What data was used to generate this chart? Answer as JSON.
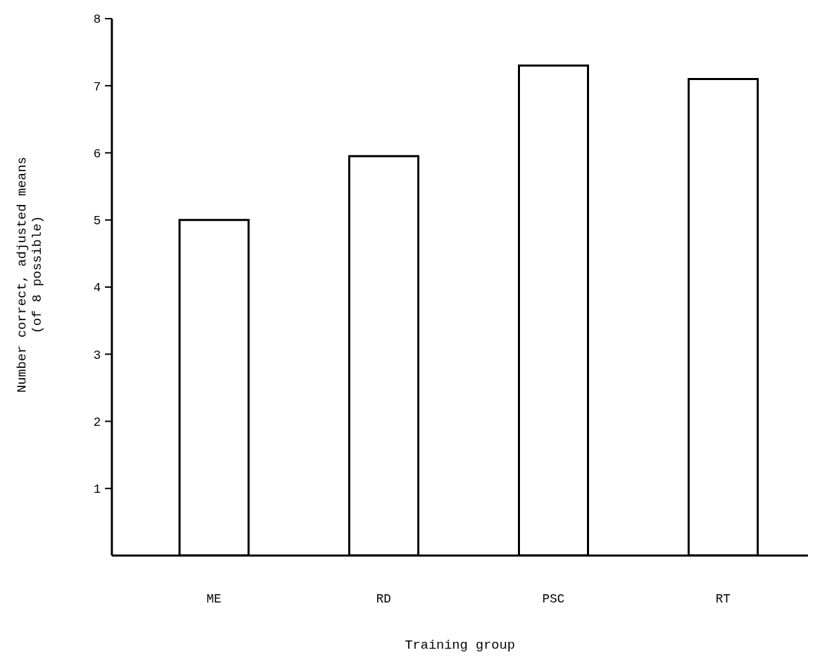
{
  "chart_data": {
    "type": "bar",
    "xlabel": "Training group",
    "ylabel": "Number correct, adjusted means\n(of 8 possible)",
    "categories": [
      "ME",
      "RD",
      "PSC",
      "RT"
    ],
    "values": [
      5.0,
      5.95,
      7.3,
      7.1
    ],
    "color": "#ffffff",
    "ylim": [
      0,
      8
    ],
    "yticks": [
      1,
      2,
      3,
      4,
      5,
      6,
      7,
      8
    ],
    "grid": false,
    "legend": false
  }
}
